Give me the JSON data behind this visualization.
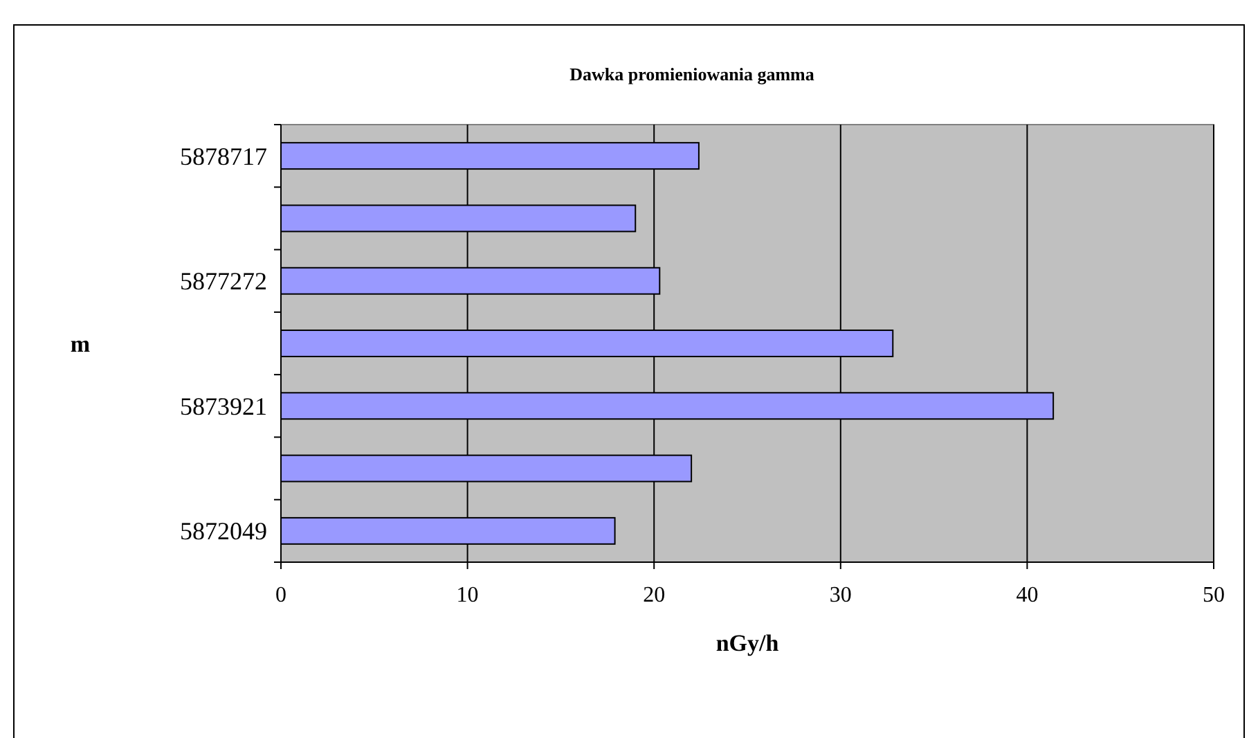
{
  "chart_data": {
    "type": "bar",
    "orientation": "horizontal",
    "title": "Dawka promieniowania gamma",
    "xlabel": "nGy/h",
    "ylabel": "m",
    "categories": [
      "5878717",
      null,
      "5877272",
      null,
      "5873921",
      null,
      "5872049"
    ],
    "values": [
      22.4,
      19.0,
      20.3,
      32.8,
      41.4,
      22.0,
      17.9
    ],
    "color": "#9999ff",
    "xlim": [
      0,
      50
    ],
    "xticks": [
      0,
      10,
      20,
      30,
      40,
      50
    ],
    "grid": "x"
  }
}
